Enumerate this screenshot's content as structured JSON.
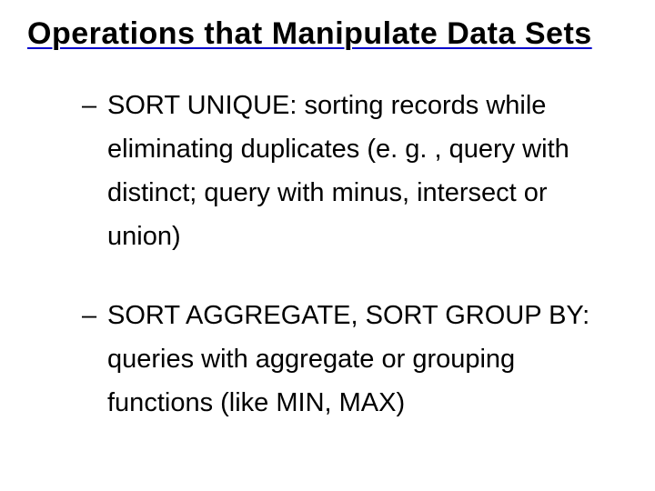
{
  "slide": {
    "title": "Operations that Manipulate Data Sets",
    "title_fontsize": 34,
    "title_color": "#000000",
    "title_underline_color": "#0000cc",
    "body_fontsize": 29,
    "body_color": "#000000",
    "body_line_height": 1.65,
    "background_color": "#ffffff",
    "bullets": [
      "SORT UNIQUE: sorting records while eliminating duplicates (e. g. , query with distinct; query with minus, intersect or union)",
      "SORT AGGREGATE, SORT GROUP BY: queries with aggregate or grouping functions (like MIN, MAX)"
    ]
  }
}
